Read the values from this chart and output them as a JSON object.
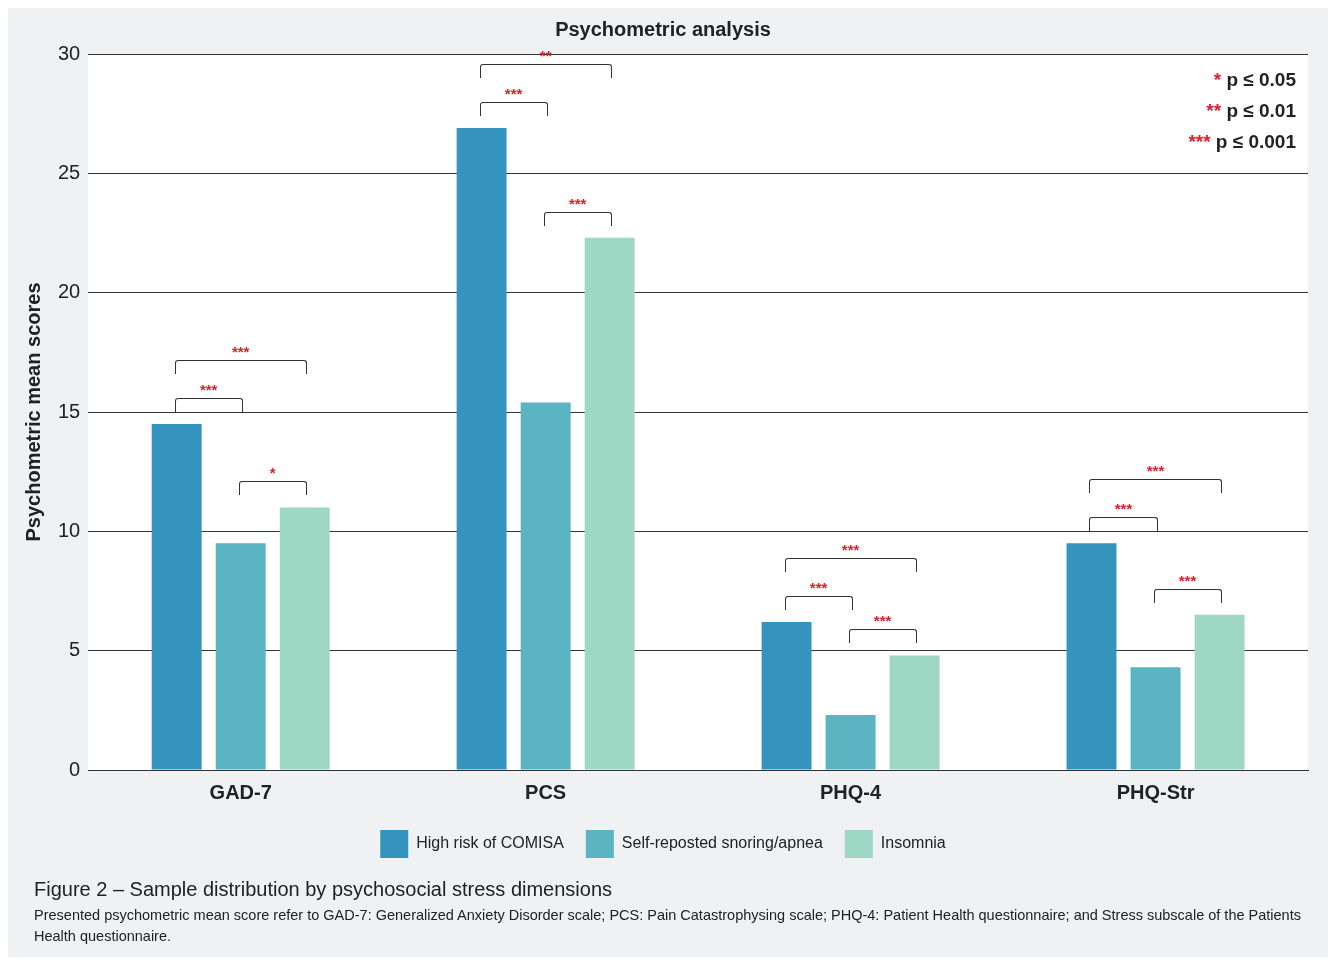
{
  "chart_data": {
    "type": "bar",
    "title": "Psychometric analysis",
    "ylabel": "Psychometric mean scores",
    "categories": [
      "GAD-7",
      "PCS",
      "PHQ-4",
      "PHQ-Str"
    ],
    "series": [
      {
        "name": "High risk of COMISA",
        "color": "#3594bd",
        "values": [
          14.5,
          26.9,
          6.2,
          9.5
        ]
      },
      {
        "name": "Self-reposted snoring/apnea",
        "color": "#5ab4c1",
        "values": [
          9.5,
          15.4,
          2.3,
          4.3
        ]
      },
      {
        "name": "Insomnia",
        "color": "#9ed8c5",
        "values": [
          11.0,
          22.3,
          4.8,
          6.5
        ]
      }
    ],
    "ylim": [
      0,
      30
    ],
    "yticks": [
      0,
      5,
      10,
      15,
      20,
      25,
      30
    ],
    "grid": "y",
    "legend": "bottom",
    "annotations": [
      "***",
      "***",
      "*",
      "**",
      "***",
      "***",
      "***",
      "***",
      "***",
      "***",
      "***",
      "***",
      "* p ≤ 0.05",
      "** p ≤ 0.01",
      "*** p ≤ 0.001",
      "Figure 2 – Sample distribution by psychosocial stress dimensions",
      "Presented psychometric mean score refer to GAD-7: Generalized Anxiety Disorder scale; PCS: Pain Catastrophysing scale; PHQ-4: Patient Health questionnaire; and Stress subscale of the Patients Health questionnaire."
    ]
  }
}
